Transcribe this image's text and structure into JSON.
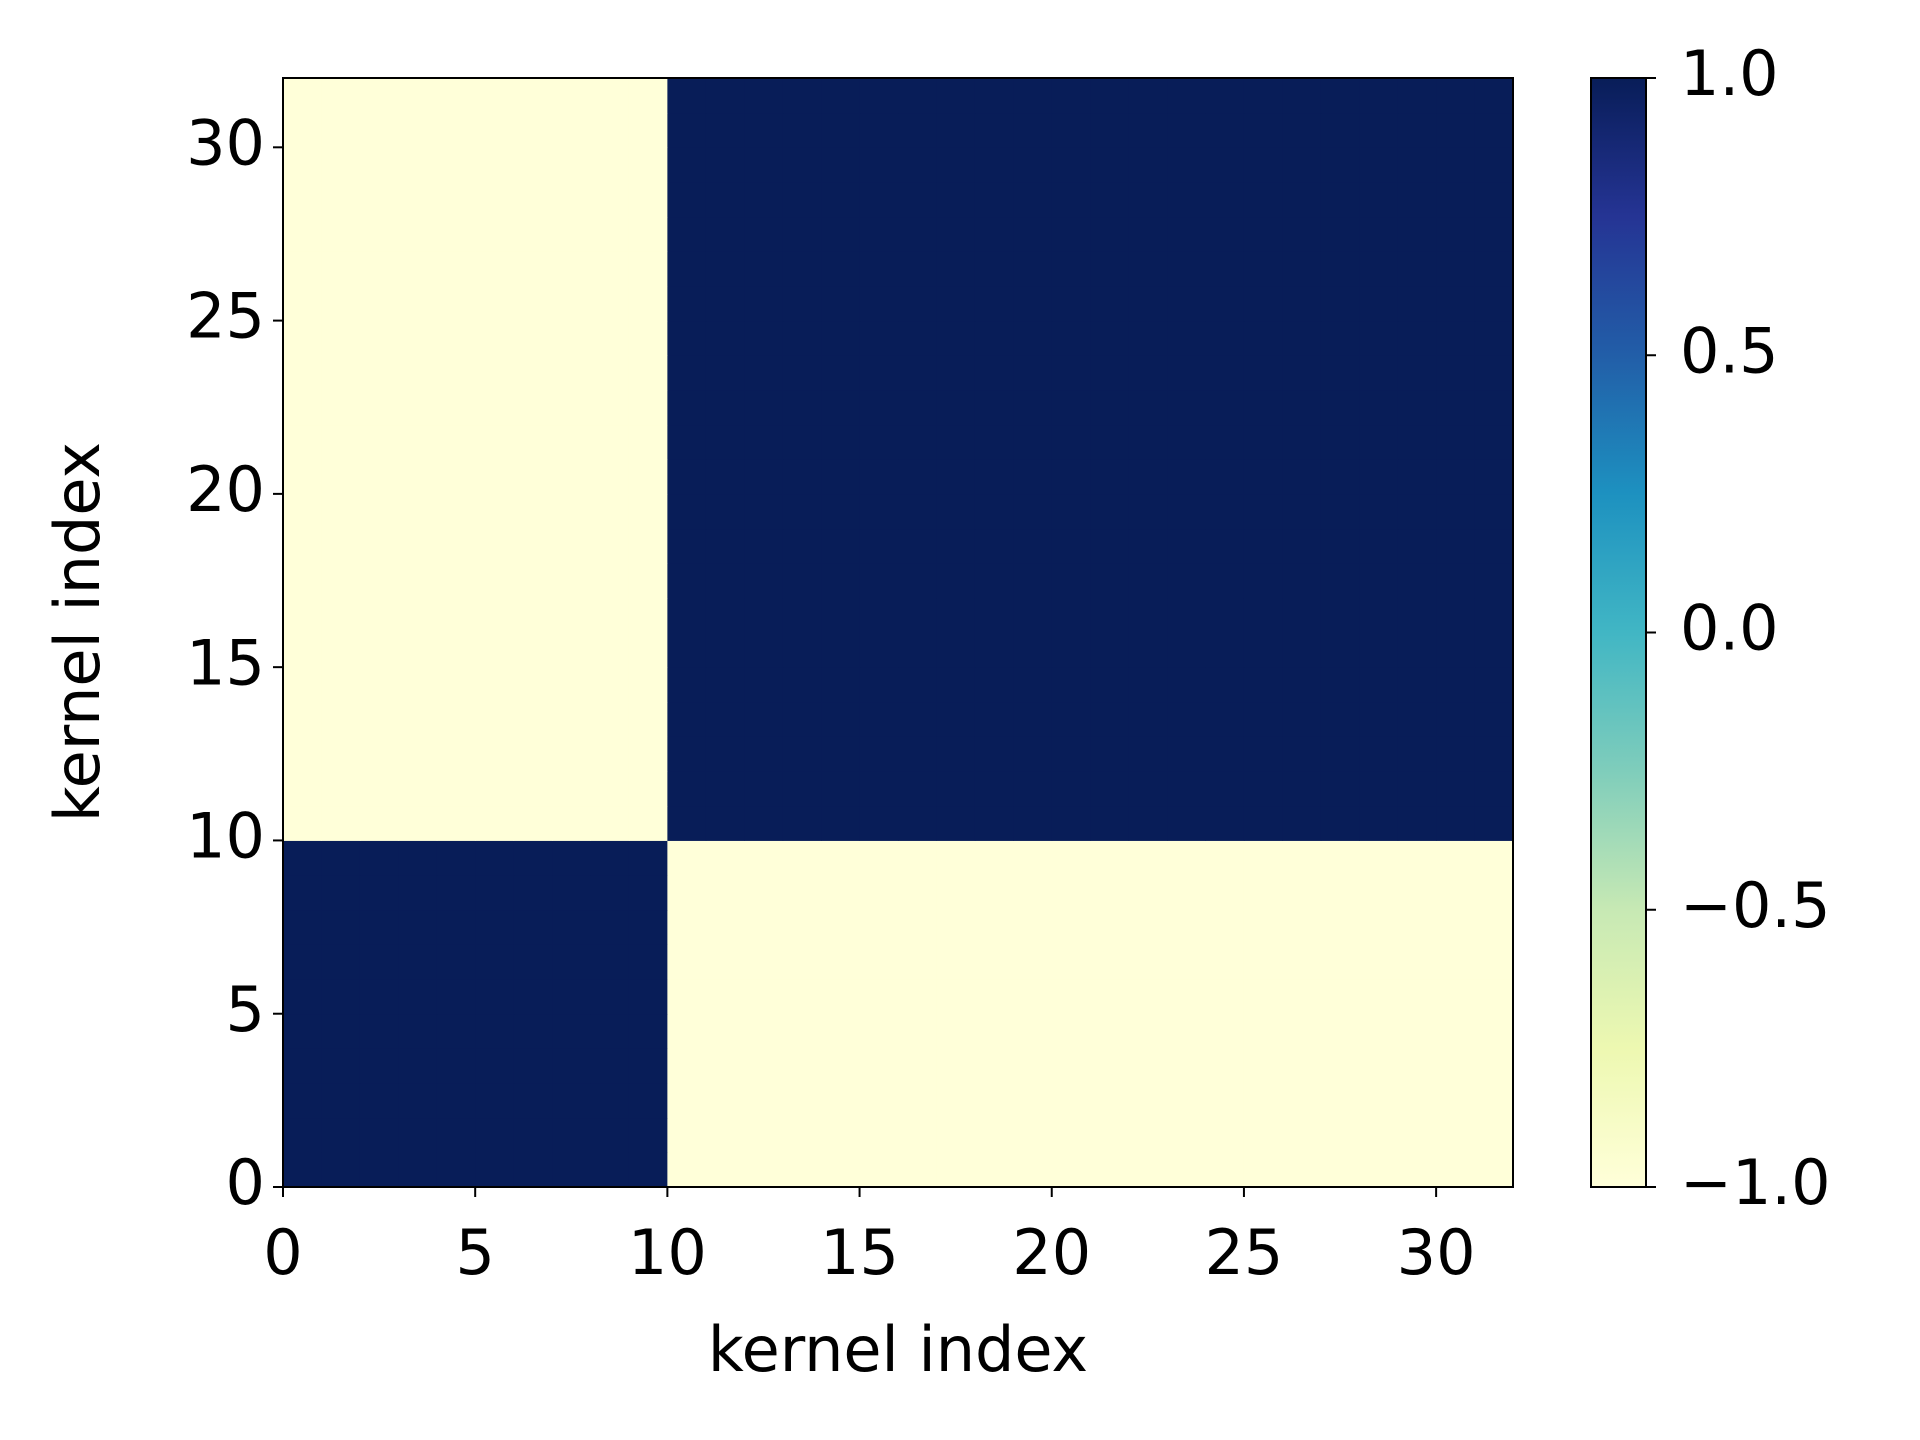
{
  "chart_data": {
    "type": "heatmap",
    "xlabel": "kernel index",
    "ylabel": "kernel index",
    "xlim": [
      0,
      32
    ],
    "ylim": [
      0,
      32
    ],
    "xticks": [
      0,
      5,
      10,
      15,
      20,
      25,
      30
    ],
    "yticks": [
      0,
      5,
      10,
      15,
      20,
      25,
      30
    ],
    "colorscale": [
      "#ffffd9",
      "#edf8b1",
      "#c7e9b4",
      "#7fcdbb",
      "#41b6c4",
      "#1d91c0",
      "#225ea8",
      "#253494",
      "#081d58"
    ],
    "clim": [
      -1,
      1
    ],
    "cticks": [
      {
        "value": -1,
        "label": "−1.0"
      },
      {
        "value": -0.5,
        "label": "−0.5"
      },
      {
        "value": 0,
        "label": "0.0"
      },
      {
        "value": 0.5,
        "label": "0.5"
      },
      {
        "value": 1,
        "label": "1.0"
      }
    ],
    "z": [
      [
        1,
        1,
        1,
        1,
        1,
        1,
        1,
        1,
        1,
        1,
        -1,
        -1,
        -1,
        -1,
        -1,
        -1,
        -1,
        -1,
        -1,
        -1,
        -1,
        -1,
        -1,
        -1,
        -1,
        -1,
        -1,
        -1,
        -1,
        -1,
        -1,
        -1
      ],
      [
        1,
        1,
        1,
        1,
        1,
        1,
        1,
        1,
        1,
        1,
        -1,
        -1,
        -1,
        -1,
        -1,
        -1,
        -1,
        -1,
        -1,
        -1,
        -1,
        -1,
        -1,
        -1,
        -1,
        -1,
        -1,
        -1,
        -1,
        -1,
        -1,
        -1
      ],
      [
        1,
        1,
        1,
        1,
        1,
        1,
        1,
        1,
        1,
        1,
        -1,
        -1,
        -1,
        -1,
        -1,
        -1,
        -1,
        -1,
        -1,
        -1,
        -1,
        -1,
        -1,
        -1,
        -1,
        -1,
        -1,
        -1,
        -1,
        -1,
        -1,
        -1
      ],
      [
        1,
        1,
        1,
        1,
        1,
        1,
        1,
        1,
        1,
        1,
        -1,
        -1,
        -1,
        -1,
        -1,
        -1,
        -1,
        -1,
        -1,
        -1,
        -1,
        -1,
        -1,
        -1,
        -1,
        -1,
        -1,
        -1,
        -1,
        -1,
        -1,
        -1
      ],
      [
        1,
        1,
        1,
        1,
        1,
        1,
        1,
        1,
        1,
        1,
        -1,
        -1,
        -1,
        -1,
        -1,
        -1,
        -1,
        -1,
        -1,
        -1,
        -1,
        -1,
        -1,
        -1,
        -1,
        -1,
        -1,
        -1,
        -1,
        -1,
        -1,
        -1
      ],
      [
        1,
        1,
        1,
        1,
        1,
        1,
        1,
        1,
        1,
        1,
        -1,
        -1,
        -1,
        -1,
        -1,
        -1,
        -1,
        -1,
        -1,
        -1,
        -1,
        -1,
        -1,
        -1,
        -1,
        -1,
        -1,
        -1,
        -1,
        -1,
        -1,
        -1
      ],
      [
        1,
        1,
        1,
        1,
        1,
        1,
        1,
        1,
        1,
        1,
        -1,
        -1,
        -1,
        -1,
        -1,
        -1,
        -1,
        -1,
        -1,
        -1,
        -1,
        -1,
        -1,
        -1,
        -1,
        -1,
        -1,
        -1,
        -1,
        -1,
        -1,
        -1
      ],
      [
        1,
        1,
        1,
        1,
        1,
        1,
        1,
        1,
        1,
        1,
        -1,
        -1,
        -1,
        -1,
        -1,
        -1,
        -1,
        -1,
        -1,
        -1,
        -1,
        -1,
        -1,
        -1,
        -1,
        -1,
        -1,
        -1,
        -1,
        -1,
        -1,
        -1
      ],
      [
        1,
        1,
        1,
        1,
        1,
        1,
        1,
        1,
        1,
        1,
        -1,
        -1,
        -1,
        -1,
        -1,
        -1,
        -1,
        -1,
        -1,
        -1,
        -1,
        -1,
        -1,
        -1,
        -1,
        -1,
        -1,
        -1,
        -1,
        -1,
        -1,
        -1
      ],
      [
        1,
        1,
        1,
        1,
        1,
        1,
        1,
        1,
        1,
        1,
        -1,
        -1,
        -1,
        -1,
        -1,
        -1,
        -1,
        -1,
        -1,
        -1,
        -1,
        -1,
        -1,
        -1,
        -1,
        -1,
        -1,
        -1,
        -1,
        -1,
        -1,
        -1
      ],
      [
        -1,
        -1,
        -1,
        -1,
        -1,
        -1,
        -1,
        -1,
        -1,
        -1,
        1,
        1,
        1,
        1,
        1,
        1,
        1,
        1,
        1,
        1,
        1,
        1,
        1,
        1,
        1,
        1,
        1,
        1,
        1,
        1,
        1,
        1
      ],
      [
        -1,
        -1,
        -1,
        -1,
        -1,
        -1,
        -1,
        -1,
        -1,
        -1,
        1,
        1,
        1,
        1,
        1,
        1,
        1,
        1,
        1,
        1,
        1,
        1,
        1,
        1,
        1,
        1,
        1,
        1,
        1,
        1,
        1,
        1
      ],
      [
        -1,
        -1,
        -1,
        -1,
        -1,
        -1,
        -1,
        -1,
        -1,
        -1,
        1,
        1,
        1,
        1,
        1,
        1,
        1,
        1,
        1,
        1,
        1,
        1,
        1,
        1,
        1,
        1,
        1,
        1,
        1,
        1,
        1,
        1
      ],
      [
        -1,
        -1,
        -1,
        -1,
        -1,
        -1,
        -1,
        -1,
        -1,
        -1,
        1,
        1,
        1,
        1,
        1,
        1,
        1,
        1,
        1,
        1,
        1,
        1,
        1,
        1,
        1,
        1,
        1,
        1,
        1,
        1,
        1,
        1
      ],
      [
        -1,
        -1,
        -1,
        -1,
        -1,
        -1,
        -1,
        -1,
        -1,
        -1,
        1,
        1,
        1,
        1,
        1,
        1,
        1,
        1,
        1,
        1,
        1,
        1,
        1,
        1,
        1,
        1,
        1,
        1,
        1,
        1,
        1,
        1
      ],
      [
        -1,
        -1,
        -1,
        -1,
        -1,
        -1,
        -1,
        -1,
        -1,
        -1,
        1,
        1,
        1,
        1,
        1,
        1,
        1,
        1,
        1,
        1,
        1,
        1,
        1,
        1,
        1,
        1,
        1,
        1,
        1,
        1,
        1,
        1
      ],
      [
        -1,
        -1,
        -1,
        -1,
        -1,
        -1,
        -1,
        -1,
        -1,
        -1,
        1,
        1,
        1,
        1,
        1,
        1,
        1,
        1,
        1,
        1,
        1,
        1,
        1,
        1,
        1,
        1,
        1,
        1,
        1,
        1,
        1,
        1
      ],
      [
        -1,
        -1,
        -1,
        -1,
        -1,
        -1,
        -1,
        -1,
        -1,
        -1,
        1,
        1,
        1,
        1,
        1,
        1,
        1,
        1,
        1,
        1,
        1,
        1,
        1,
        1,
        1,
        1,
        1,
        1,
        1,
        1,
        1,
        1
      ],
      [
        -1,
        -1,
        -1,
        -1,
        -1,
        -1,
        -1,
        -1,
        -1,
        -1,
        1,
        1,
        1,
        1,
        1,
        1,
        1,
        1,
        1,
        1,
        1,
        1,
        1,
        1,
        1,
        1,
        1,
        1,
        1,
        1,
        1,
        1
      ],
      [
        -1,
        -1,
        -1,
        -1,
        -1,
        -1,
        -1,
        -1,
        -1,
        -1,
        1,
        1,
        1,
        1,
        1,
        1,
        1,
        1,
        1,
        1,
        1,
        1,
        1,
        1,
        1,
        1,
        1,
        1,
        1,
        1,
        1,
        1
      ],
      [
        -1,
        -1,
        -1,
        -1,
        -1,
        -1,
        -1,
        -1,
        -1,
        -1,
        1,
        1,
        1,
        1,
        1,
        1,
        1,
        1,
        1,
        1,
        1,
        1,
        1,
        1,
        1,
        1,
        1,
        1,
        1,
        1,
        1,
        1
      ],
      [
        -1,
        -1,
        -1,
        -1,
        -1,
        -1,
        -1,
        -1,
        -1,
        -1,
        1,
        1,
        1,
        1,
        1,
        1,
        1,
        1,
        1,
        1,
        1,
        1,
        1,
        1,
        1,
        1,
        1,
        1,
        1,
        1,
        1,
        1
      ],
      [
        -1,
        -1,
        -1,
        -1,
        -1,
        -1,
        -1,
        -1,
        -1,
        -1,
        1,
        1,
        1,
        1,
        1,
        1,
        1,
        1,
        1,
        1,
        1,
        1,
        1,
        1,
        1,
        1,
        1,
        1,
        1,
        1,
        1,
        1
      ],
      [
        -1,
        -1,
        -1,
        -1,
        -1,
        -1,
        -1,
        -1,
        -1,
        -1,
        1,
        1,
        1,
        1,
        1,
        1,
        1,
        1,
        1,
        1,
        1,
        1,
        1,
        1,
        1,
        1,
        1,
        1,
        1,
        1,
        1,
        1
      ],
      [
        -1,
        -1,
        -1,
        -1,
        -1,
        -1,
        -1,
        -1,
        -1,
        -1,
        1,
        1,
        1,
        1,
        1,
        1,
        1,
        1,
        1,
        1,
        1,
        1,
        1,
        1,
        1,
        1,
        1,
        1,
        1,
        1,
        1,
        1
      ],
      [
        -1,
        -1,
        -1,
        -1,
        -1,
        -1,
        -1,
        -1,
        -1,
        -1,
        1,
        1,
        1,
        1,
        1,
        1,
        1,
        1,
        1,
        1,
        1,
        1,
        1,
        1,
        1,
        1,
        1,
        1,
        1,
        1,
        1,
        1
      ],
      [
        -1,
        -1,
        -1,
        -1,
        -1,
        -1,
        -1,
        -1,
        -1,
        -1,
        1,
        1,
        1,
        1,
        1,
        1,
        1,
        1,
        1,
        1,
        1,
        1,
        1,
        1,
        1,
        1,
        1,
        1,
        1,
        1,
        1,
        1
      ],
      [
        -1,
        -1,
        -1,
        -1,
        -1,
        -1,
        -1,
        -1,
        -1,
        -1,
        1,
        1,
        1,
        1,
        1,
        1,
        1,
        1,
        1,
        1,
        1,
        1,
        1,
        1,
        1,
        1,
        1,
        1,
        1,
        1,
        1,
        1
      ],
      [
        -1,
        -1,
        -1,
        -1,
        -1,
        -1,
        -1,
        -1,
        -1,
        -1,
        1,
        1,
        1,
        1,
        1,
        1,
        1,
        1,
        1,
        1,
        1,
        1,
        1,
        1,
        1,
        1,
        1,
        1,
        1,
        1,
        1,
        1
      ],
      [
        -1,
        -1,
        -1,
        -1,
        -1,
        -1,
        -1,
        -1,
        -1,
        -1,
        1,
        1,
        1,
        1,
        1,
        1,
        1,
        1,
        1,
        1,
        1,
        1,
        1,
        1,
        1,
        1,
        1,
        1,
        1,
        1,
        1,
        1
      ],
      [
        -1,
        -1,
        -1,
        -1,
        -1,
        -1,
        -1,
        -1,
        -1,
        -1,
        1,
        1,
        1,
        1,
        1,
        1,
        1,
        1,
        1,
        1,
        1,
        1,
        1,
        1,
        1,
        1,
        1,
        1,
        1,
        1,
        1,
        1
      ],
      [
        -1,
        -1,
        -1,
        -1,
        -1,
        -1,
        -1,
        -1,
        -1,
        -1,
        1,
        1,
        1,
        1,
        1,
        1,
        1,
        1,
        1,
        1,
        1,
        1,
        1,
        1,
        1,
        1,
        1,
        1,
        1,
        1,
        1,
        1
      ]
    ]
  }
}
